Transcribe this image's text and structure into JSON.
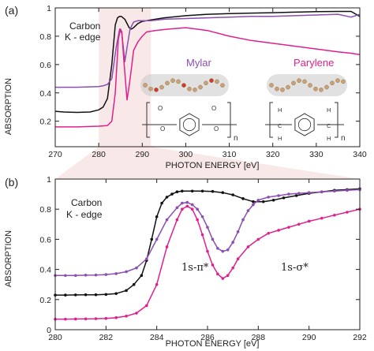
{
  "colors": {
    "black": "#111111",
    "purple": "#8a4fb0",
    "magenta": "#e0208c",
    "shade": "#f6dede",
    "axis": "#222222",
    "mol": "#c8c8c8"
  },
  "chart_data": [
    {
      "type": "line",
      "panel_label": "(a)",
      "xlabel": "PHOTON ENERGY [eV]",
      "ylabel": "ABSORPTION",
      "xlim": [
        270,
        340
      ],
      "ylim": [
        0.02,
        1.0
      ],
      "xticks": [
        "270",
        "280",
        "290",
        "300",
        "310",
        "320",
        "330",
        "340"
      ],
      "yticks": [
        "0.2",
        "0.4",
        "0.6",
        "0.8",
        "1"
      ],
      "annotation": [
        "Carbon",
        "K - edge"
      ],
      "inline_labels": [
        "Mylar",
        "Parylene"
      ],
      "series": [
        {
          "color": "black",
          "x": [
            270,
            272,
            275,
            278,
            280,
            281,
            282,
            283,
            283.8,
            284.3,
            284.8,
            285.2,
            286,
            287,
            287.5,
            288,
            289,
            290,
            292,
            295,
            300,
            305,
            310,
            315,
            320,
            325,
            330,
            335,
            338,
            340
          ],
          "y": [
            0.27,
            0.265,
            0.262,
            0.265,
            0.28,
            0.3,
            0.36,
            0.6,
            0.88,
            0.93,
            0.94,
            0.94,
            0.92,
            0.86,
            0.85,
            0.86,
            0.89,
            0.905,
            0.915,
            0.93,
            0.945,
            0.955,
            0.96,
            0.963,
            0.966,
            0.97,
            0.973,
            0.975,
            0.975,
            0.94
          ]
        },
        {
          "color": "purple",
          "x": [
            270,
            275,
            280,
            281,
            282,
            283,
            284,
            284.8,
            285.3,
            286,
            286.5,
            287.2,
            288,
            289,
            290,
            292,
            295,
            300,
            305,
            310,
            315,
            320,
            325,
            330,
            335,
            338,
            340
          ],
          "y": [
            0.44,
            0.44,
            0.445,
            0.45,
            0.46,
            0.5,
            0.72,
            0.85,
            0.82,
            0.62,
            0.72,
            0.85,
            0.9,
            0.91,
            0.91,
            0.91,
            0.92,
            0.925,
            0.93,
            0.935,
            0.94,
            0.94,
            0.945,
            0.95,
            0.955,
            0.935,
            0.955
          ]
        },
        {
          "color": "magenta",
          "x": [
            270,
            275,
            280,
            282,
            283,
            283.8,
            284.5,
            285,
            285.3,
            285.8,
            286.5,
            287,
            287.5,
            288,
            289,
            290,
            291,
            293,
            296,
            300,
            305,
            310,
            315,
            320,
            325,
            330,
            335,
            338,
            340
          ],
          "y": [
            0.16,
            0.16,
            0.165,
            0.17,
            0.2,
            0.4,
            0.78,
            0.85,
            0.83,
            0.62,
            0.35,
            0.45,
            0.57,
            0.7,
            0.76,
            0.8,
            0.83,
            0.84,
            0.85,
            0.86,
            0.84,
            0.8,
            0.77,
            0.75,
            0.73,
            0.71,
            0.69,
            0.68,
            0.67
          ]
        }
      ],
      "structures": [
        {
          "name": "mylar",
          "left_atoms": [
            "O",
            "O"
          ],
          "right_atoms": [
            "O",
            "O"
          ],
          "subscript": "n"
        },
        {
          "name": "parylene",
          "left_atoms": [
            "H",
            "C",
            "H"
          ],
          "right_atoms": [
            "H",
            "C",
            "H"
          ],
          "subscript": "n"
        }
      ]
    },
    {
      "type": "line",
      "panel_label": "(b)",
      "xlabel": "PHOTON ENERGY [eV]",
      "ylabel": "ABSORPTION",
      "xlim": [
        280,
        292
      ],
      "ylim": [
        0.0,
        1.0
      ],
      "xticks": [
        "280",
        "282",
        "284",
        "286",
        "288",
        "290",
        "292"
      ],
      "yticks": [
        "0",
        "0.2",
        "0.4",
        "0.6",
        "0.8",
        "1"
      ],
      "annotation": [
        "Carbon",
        "K - edge"
      ],
      "peak_labels": [
        "1s-π*",
        "1s-σ*"
      ],
      "series": [
        {
          "color": "black",
          "x": [
            280,
            280.4,
            280.8,
            281.2,
            281.6,
            282,
            282.4,
            282.8,
            283.1,
            283.4,
            283.6,
            283.8,
            284,
            284.2,
            284.4,
            284.6,
            284.8,
            285,
            285.4,
            285.8,
            286.2,
            286.6,
            287,
            287.4,
            287.8,
            288.2,
            288.6,
            289,
            289.5,
            290,
            290.5,
            291,
            291.5,
            292
          ],
          "y": [
            0.23,
            0.23,
            0.231,
            0.232,
            0.232,
            0.234,
            0.24,
            0.26,
            0.3,
            0.36,
            0.46,
            0.6,
            0.75,
            0.84,
            0.88,
            0.9,
            0.915,
            0.92,
            0.92,
            0.92,
            0.918,
            0.91,
            0.895,
            0.87,
            0.85,
            0.85,
            0.86,
            0.875,
            0.89,
            0.905,
            0.915,
            0.925,
            0.93,
            0.935
          ]
        },
        {
          "color": "purple",
          "x": [
            280,
            280.4,
            280.8,
            281.2,
            281.6,
            282,
            282.4,
            282.8,
            283.2,
            283.6,
            284,
            284.4,
            284.8,
            285,
            285.2,
            285.4,
            285.6,
            285.8,
            286,
            286.2,
            286.4,
            286.6,
            286.8,
            287,
            287.2,
            287.4,
            287.6,
            287.8,
            288,
            288.4,
            288.8,
            289.2,
            289.6,
            290,
            290.5,
            291,
            291.5,
            292
          ],
          "y": [
            0.36,
            0.36,
            0.36,
            0.362,
            0.363,
            0.366,
            0.372,
            0.385,
            0.41,
            0.47,
            0.6,
            0.73,
            0.81,
            0.84,
            0.845,
            0.83,
            0.8,
            0.75,
            0.68,
            0.6,
            0.54,
            0.52,
            0.53,
            0.58,
            0.65,
            0.73,
            0.79,
            0.83,
            0.86,
            0.88,
            0.89,
            0.9,
            0.905,
            0.91,
            0.915,
            0.92,
            0.925,
            0.93
          ]
        },
        {
          "color": "magenta",
          "x": [
            280,
            280.4,
            280.8,
            281.2,
            281.6,
            282,
            282.4,
            282.8,
            283.2,
            283.6,
            284,
            284.4,
            284.8,
            285,
            285.2,
            285.4,
            285.6,
            285.8,
            286,
            286.2,
            286.4,
            286.6,
            286.8,
            287,
            287.2,
            287.6,
            288,
            288.4,
            288.8,
            289.2,
            289.6,
            290,
            290.5,
            291,
            291.5,
            292
          ],
          "y": [
            0.07,
            0.07,
            0.071,
            0.072,
            0.073,
            0.075,
            0.08,
            0.09,
            0.11,
            0.16,
            0.3,
            0.55,
            0.73,
            0.8,
            0.82,
            0.8,
            0.73,
            0.63,
            0.52,
            0.43,
            0.37,
            0.34,
            0.36,
            0.41,
            0.47,
            0.55,
            0.6,
            0.64,
            0.66,
            0.68,
            0.7,
            0.72,
            0.74,
            0.76,
            0.78,
            0.8
          ]
        }
      ]
    }
  ]
}
